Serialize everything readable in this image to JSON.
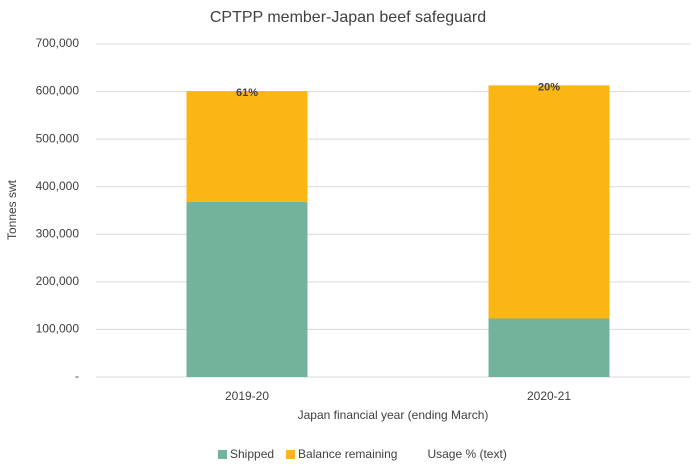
{
  "chart_data": {
    "type": "stacked_bar",
    "title": "CPTPP member-Japan beef safeguard",
    "x_label": "Japan financial year (ending March)",
    "y_label": "Tonnes swt",
    "categories": [
      "2019-20",
      "2020-21"
    ],
    "series": [
      {
        "name": "Shipped",
        "color": "#73b39b",
        "values": [
          368000,
          123000
        ]
      },
      {
        "name": "Balance remaining",
        "color": "#fbb614",
        "values": [
          233000,
          490000
        ]
      }
    ],
    "usage": {
      "name": "Usage % (text)",
      "values": [
        61,
        20
      ],
      "value_labels": [
        "61%",
        "20%"
      ]
    },
    "ylim": [
      0,
      700000
    ],
    "yticks": [
      {
        "value": 0,
        "label": "-"
      },
      {
        "value": 100000,
        "label": "100,000"
      },
      {
        "value": 200000,
        "label": "200,000"
      },
      {
        "value": 300000,
        "label": "300,000"
      },
      {
        "value": 400000,
        "label": "400,000"
      },
      {
        "value": 500000,
        "label": "500,000"
      },
      {
        "value": 600000,
        "label": "600,000"
      },
      {
        "value": 700000,
        "label": "700,000"
      }
    ],
    "grid": true,
    "legend": "bottom"
  }
}
